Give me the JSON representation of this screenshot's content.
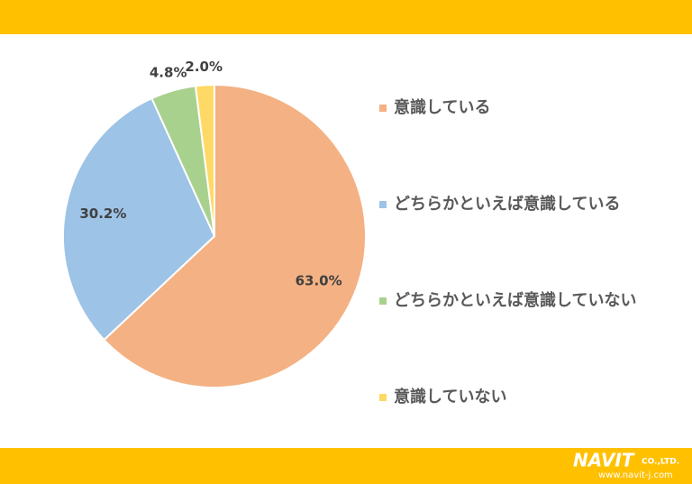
{
  "chart_data": {
    "type": "pie",
    "categories": [
      "意識している",
      "どちらかといえば意識している",
      "どちらかといえば意識していない",
      "意識していない"
    ],
    "values": [
      63.0,
      30.2,
      4.8,
      2.0
    ],
    "value_labels": [
      "63.0%",
      "30.2%",
      "4.8%",
      "2.0%"
    ],
    "colors": [
      "#F4B183",
      "#9DC3E6",
      "#A9D18E",
      "#FFD966"
    ],
    "legend": "right"
  },
  "footer": {
    "logo": "NAVIT",
    "company": "CO.,LTD.",
    "url": "www.navit-j.com"
  }
}
